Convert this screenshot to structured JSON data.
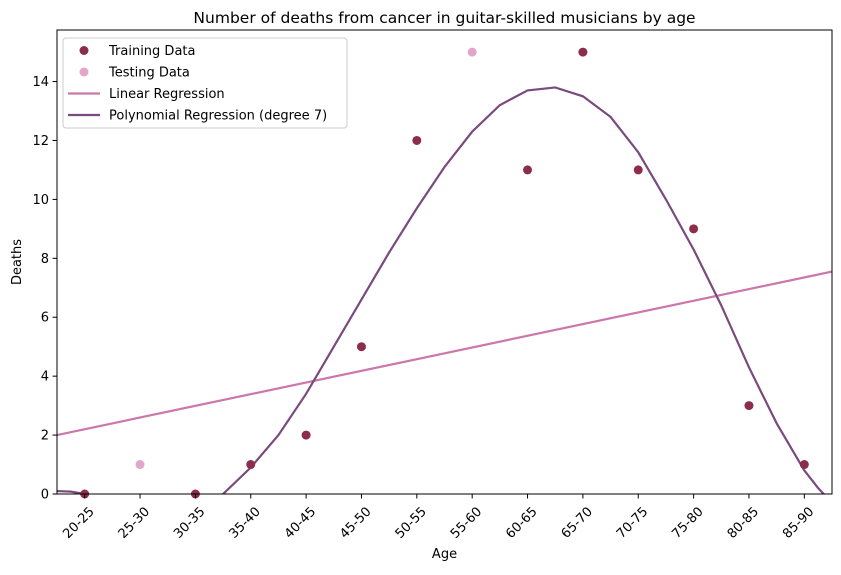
{
  "chart_data": {
    "type": "scatter",
    "title": "Number of deaths from cancer in guitar-skilled musicians by age",
    "xlabel": "Age",
    "ylabel": "Deaths",
    "categories": [
      "20-25",
      "25-30",
      "30-35",
      "35-40",
      "40-45",
      "45-50",
      "50-55",
      "55-60",
      "60-65",
      "65-70",
      "70-75",
      "75-80",
      "80-85",
      "85-90"
    ],
    "xlim": [
      -0.5,
      13.5
    ],
    "ylim": [
      0,
      15.75
    ],
    "yticks": [
      0,
      2,
      4,
      6,
      8,
      10,
      12,
      14
    ],
    "legend_position": "top-left",
    "series": [
      {
        "name": "Training Data",
        "kind": "scatter",
        "color": "#8c2d4c",
        "points": [
          [
            0,
            0
          ],
          [
            2,
            0
          ],
          [
            3,
            1
          ],
          [
            4,
            2
          ],
          [
            5,
            5
          ],
          [
            6,
            12
          ],
          [
            8,
            11
          ],
          [
            9,
            15
          ],
          [
            10,
            11
          ],
          [
            11,
            9
          ],
          [
            12,
            3
          ],
          [
            13,
            1
          ]
        ]
      },
      {
        "name": "Testing Data",
        "kind": "scatter",
        "color": "#e3a6c8",
        "points": [
          [
            1,
            1
          ],
          [
            7,
            15
          ]
        ]
      },
      {
        "name": "Linear Regression",
        "kind": "line",
        "color": "#cc77aa",
        "points": [
          [
            -0.5,
            2.0
          ],
          [
            13.5,
            7.55
          ]
        ]
      },
      {
        "name": "Polynomial Regression (degree 7)",
        "kind": "line",
        "color": "#7a4a7e",
        "points": [
          [
            -0.5,
            0.1
          ],
          [
            -0.25,
            0.08
          ],
          [
            0,
            0.0
          ],
          [
            0.5,
            -0.3
          ],
          [
            1,
            -0.6
          ],
          [
            1.5,
            -0.8
          ],
          [
            2,
            -0.6
          ],
          [
            2.5,
            0.0
          ],
          [
            3,
            0.9
          ],
          [
            3.5,
            2.0
          ],
          [
            4,
            3.4
          ],
          [
            4.5,
            5.0
          ],
          [
            5,
            6.6
          ],
          [
            5.5,
            8.2
          ],
          [
            6,
            9.7
          ],
          [
            6.5,
            11.1
          ],
          [
            7,
            12.3
          ],
          [
            7.5,
            13.2
          ],
          [
            8,
            13.7
          ],
          [
            8.5,
            13.8
          ],
          [
            9,
            13.5
          ],
          [
            9.5,
            12.8
          ],
          [
            10,
            11.6
          ],
          [
            10.5,
            10.0
          ],
          [
            11,
            8.3
          ],
          [
            11.5,
            6.4
          ],
          [
            12,
            4.3
          ],
          [
            12.5,
            2.4
          ],
          [
            13,
            0.8
          ],
          [
            13.25,
            0.2
          ],
          [
            13.5,
            -0.3
          ]
        ]
      }
    ]
  }
}
